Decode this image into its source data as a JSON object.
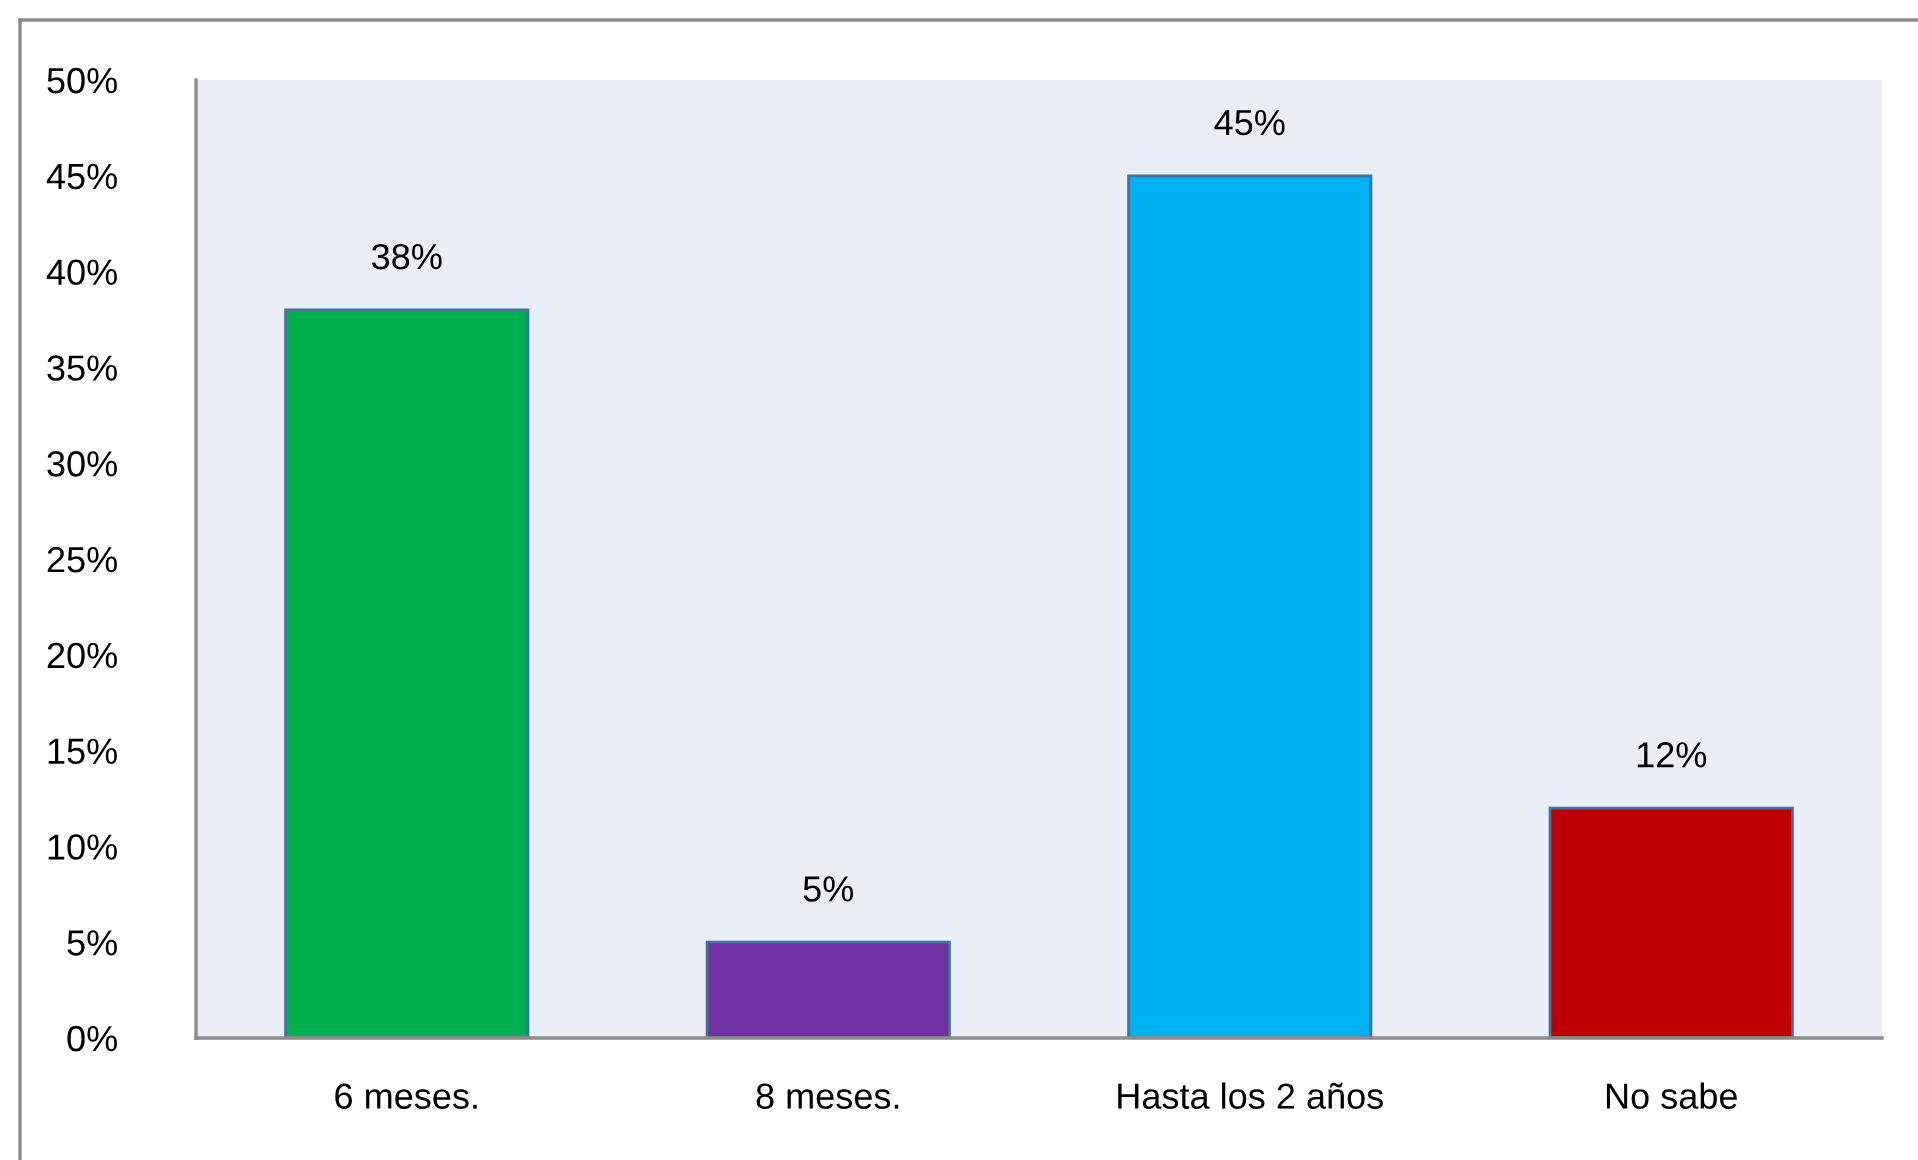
{
  "chart_data": {
    "type": "bar",
    "categories": [
      "6 meses.",
      "8 meses.",
      "Hasta los 2 años",
      "No sabe"
    ],
    "values": [
      38,
      5,
      45,
      12
    ],
    "colors": [
      "#00b050",
      "#7030a0",
      "#00b0f0",
      "#c00000"
    ],
    "value_labels": [
      "38%",
      "5%",
      "45%",
      "12%"
    ],
    "ylim": [
      0,
      50
    ],
    "yticks": [
      {
        "value": 0,
        "label": "0%"
      },
      {
        "value": 5,
        "label": "5%"
      },
      {
        "value": 10,
        "label": "10%"
      },
      {
        "value": 15,
        "label": "15%"
      },
      {
        "value": 20,
        "label": "20%"
      },
      {
        "value": 25,
        "label": "25%"
      },
      {
        "value": 30,
        "label": "30%"
      },
      {
        "value": 35,
        "label": "35%"
      },
      {
        "value": 40,
        "label": "40%"
      },
      {
        "value": 45,
        "label": "45%"
      },
      {
        "value": 50,
        "label": "50%"
      }
    ],
    "grid": false,
    "legend": false
  }
}
